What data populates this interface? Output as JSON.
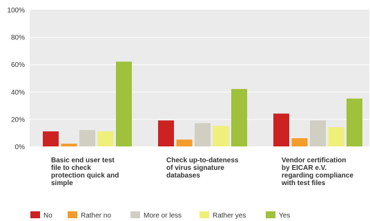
{
  "chart_data": {
    "type": "bar",
    "categories": [
      [
        "Basic end user test",
        "file to check",
        "protection quick and",
        "simple"
      ],
      [
        "Check up-to-dateness",
        "of virus signature",
        "databases"
      ],
      [
        "Vendor certification",
        "by EICAR e.V.",
        "regarding compliance",
        "with test files"
      ]
    ],
    "series": [
      {
        "name": "No",
        "color": "#cc2222",
        "values": [
          11,
          19,
          24
        ]
      },
      {
        "name": "Rather no",
        "color": "#f39c2b",
        "values": [
          2,
          5,
          6
        ]
      },
      {
        "name": "More or less",
        "color": "#d0cfc2",
        "values": [
          12,
          17,
          19
        ]
      },
      {
        "name": "Rather yes",
        "color": "#eff07a",
        "values": [
          11,
          15,
          14
        ]
      },
      {
        "name": "Yes",
        "color": "#9fc13b",
        "values": [
          62,
          42,
          35
        ]
      }
    ],
    "yticks": [
      "0%",
      "20%",
      "40%",
      "60%",
      "80%",
      "100%"
    ],
    "ylim": [
      0,
      100
    ],
    "grid": true,
    "legend_position": "bottom",
    "plot_background": "#ebebeb"
  }
}
